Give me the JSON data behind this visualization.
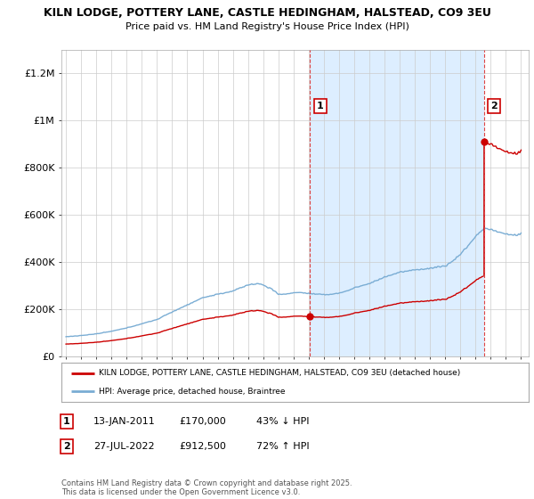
{
  "title_line1": "KILN LODGE, POTTERY LANE, CASTLE HEDINGHAM, HALSTEAD, CO9 3EU",
  "title_line2": "Price paid vs. HM Land Registry's House Price Index (HPI)",
  "ylim": [
    0,
    1300000
  ],
  "yticks": [
    0,
    200000,
    400000,
    600000,
    800000,
    1000000,
    1200000
  ],
  "ytick_labels": [
    "£0",
    "£200K",
    "£400K",
    "£600K",
    "£800K",
    "£1M",
    "£1.2M"
  ],
  "sale1_date_x": 2011.04,
  "sale1_price": 170000,
  "sale2_date_x": 2022.58,
  "sale2_price": 912500,
  "hpi_color": "#7aadd4",
  "sale_color": "#cc0000",
  "vline_color": "#dd4444",
  "background_color": "#ffffff",
  "fill_color": "#ddeeff",
  "grid_color": "#cccccc",
  "legend_label_red": "KILN LODGE, POTTERY LANE, CASTLE HEDINGHAM, HALSTEAD, CO9 3EU (detached house)",
  "legend_label_blue": "HPI: Average price, detached house, Braintree",
  "footnote": "Contains HM Land Registry data © Crown copyright and database right 2025.\nThis data is licensed under the Open Government Licence v3.0.",
  "xmin": 1994.7,
  "xmax": 2025.5
}
